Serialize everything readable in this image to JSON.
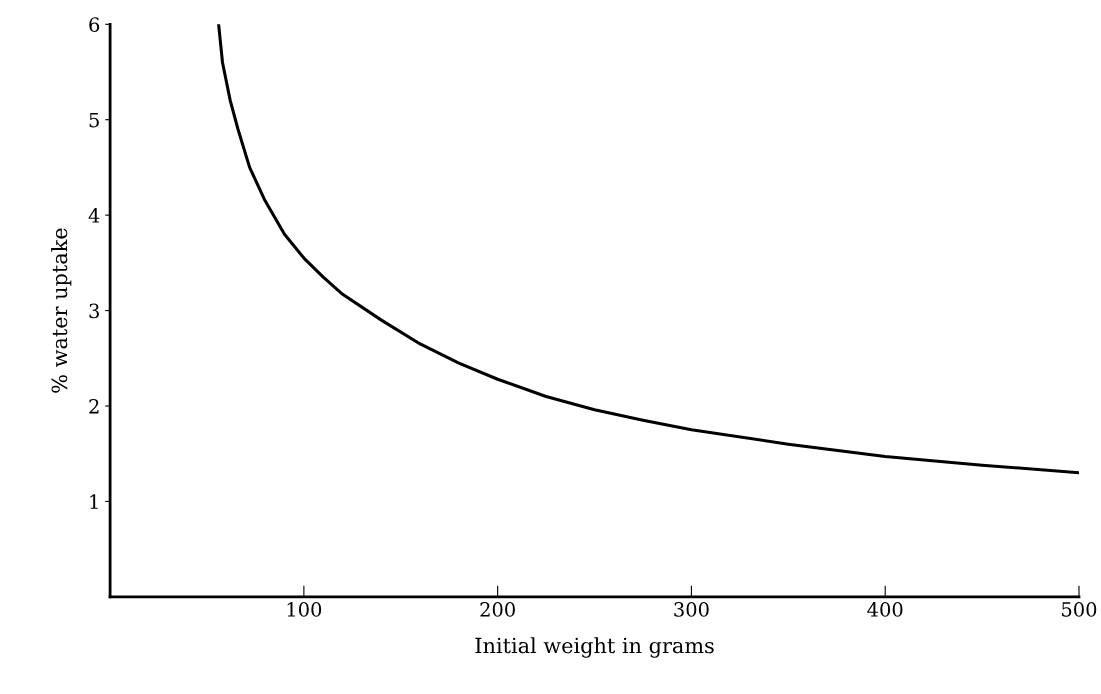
{
  "chart_data": {
    "type": "line",
    "xlabel": "Initial weight in grams",
    "ylabel": "% water uptake",
    "x": [
      56,
      58,
      62,
      66,
      72,
      80,
      90,
      100,
      110,
      120,
      140,
      160,
      180,
      200,
      225,
      250,
      275,
      300,
      350,
      400,
      450,
      500
    ],
    "series": [
      {
        "color": "#000000",
        "values": [
          6.0,
          5.6,
          5.2,
          4.9,
          4.5,
          4.15,
          3.8,
          3.55,
          3.35,
          3.17,
          2.9,
          2.65,
          2.45,
          2.28,
          2.1,
          1.96,
          1.85,
          1.75,
          1.6,
          1.47,
          1.38,
          1.3
        ]
      }
    ],
    "xlim": [
      0,
      500
    ],
    "ylim": [
      0,
      6
    ],
    "xticks": [
      100,
      200,
      300,
      400,
      500
    ],
    "yticks": [
      1,
      2,
      3,
      4,
      5,
      6
    ],
    "grid": false,
    "legend": false,
    "marker": "none",
    "line_style": "solid"
  }
}
